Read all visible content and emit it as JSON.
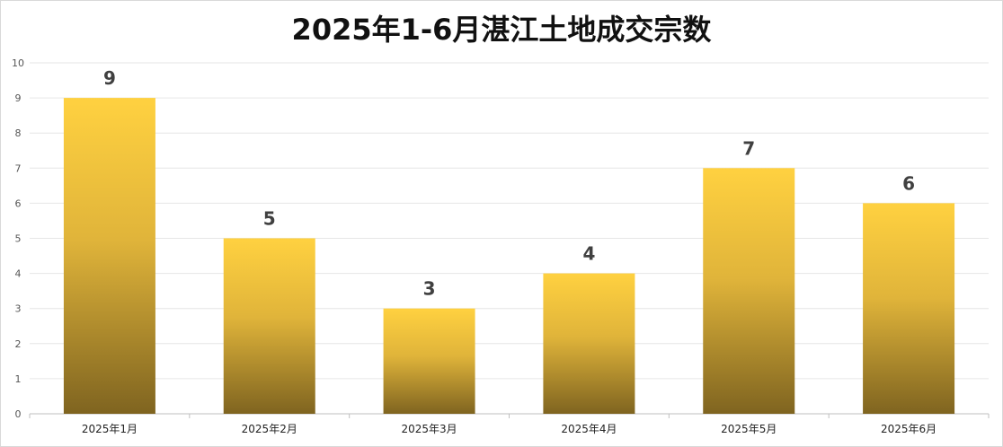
{
  "chart_data": {
    "type": "bar",
    "title": "2025年1-6月湛江土地成交宗数",
    "categories": [
      "2025年1月",
      "2025年2月",
      "2025年3月",
      "2025年4月",
      "2025年5月",
      "2025年6月"
    ],
    "values": [
      9,
      5,
      3,
      4,
      7,
      6
    ],
    "data_labels": [
      "9",
      "5",
      "3",
      "4",
      "7",
      "6"
    ],
    "y_ticks": [
      "0",
      "1",
      "2",
      "3",
      "4",
      "5",
      "6",
      "7",
      "8",
      "9",
      "10"
    ],
    "ylim": [
      0,
      10
    ],
    "grid": true,
    "legend": "none",
    "colors": {
      "bar_top": "#ffd140",
      "bar_bottom": "#7f6420",
      "grid": "#e6e6e6",
      "axis": "#bfbfbf"
    }
  }
}
